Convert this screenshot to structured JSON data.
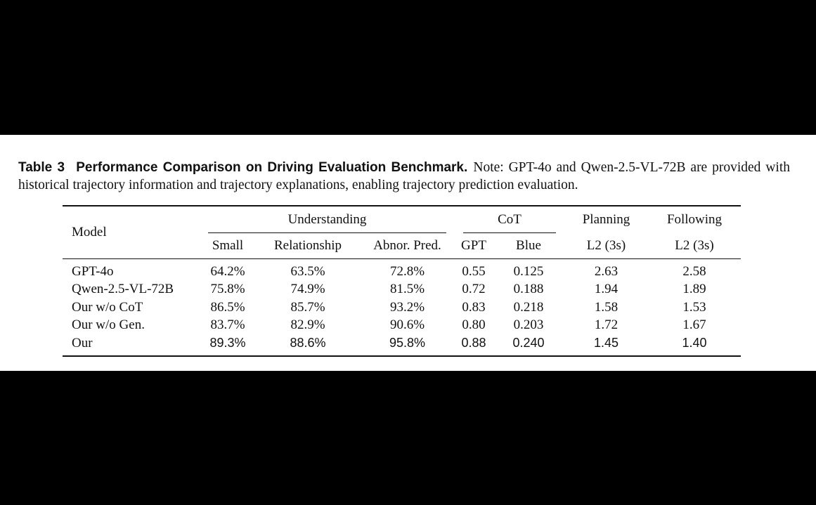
{
  "caption": {
    "label": "Table 3",
    "title": "Performance Comparison on Driving Evaluation Benchmark.",
    "note": "Note: GPT-4o and Qwen-2.5-VL-72B are provided with historical trajectory information and trajectory explanations, enabling trajectory prediction evaluation."
  },
  "table": {
    "model_header": "Model",
    "groups": {
      "understanding": "Understanding",
      "cot": "CoT",
      "planning": "Planning",
      "following": "Following"
    },
    "columns": {
      "small": "Small",
      "relationship": "Relationship",
      "abnor_pred": "Abnor. Pred.",
      "gpt": "GPT",
      "blue": "Blue",
      "planning_l2": "L2 (3s)",
      "following_l2": "L2 (3s)"
    },
    "rows": [
      {
        "model": "GPT-4o",
        "small": "64.2%",
        "relationship": "63.5%",
        "abnor_pred": "72.8%",
        "gpt": "0.55",
        "blue": "0.125",
        "planning_l2": "2.63",
        "following_l2": "2.58"
      },
      {
        "model": "Qwen-2.5-VL-72B",
        "small": "75.8%",
        "relationship": "74.9%",
        "abnor_pred": "81.5%",
        "gpt": "0.72",
        "blue": "0.188",
        "planning_l2": "1.94",
        "following_l2": "1.89"
      },
      {
        "model": "Our w/o CoT",
        "small": "86.5%",
        "relationship": "85.7%",
        "abnor_pred": "93.2%",
        "gpt": "0.83",
        "blue": "0.218",
        "planning_l2": "1.58",
        "following_l2": "1.53"
      },
      {
        "model": "Our w/o Gen.",
        "small": "83.7%",
        "relationship": "82.9%",
        "abnor_pred": "90.6%",
        "gpt": "0.80",
        "blue": "0.203",
        "planning_l2": "1.72",
        "following_l2": "1.67"
      },
      {
        "model": "Our",
        "small": "89.3%",
        "relationship": "88.6%",
        "abnor_pred": "95.8%",
        "gpt": "0.88",
        "blue": "0.240",
        "planning_l2": "1.45",
        "following_l2": "1.40"
      }
    ]
  }
}
